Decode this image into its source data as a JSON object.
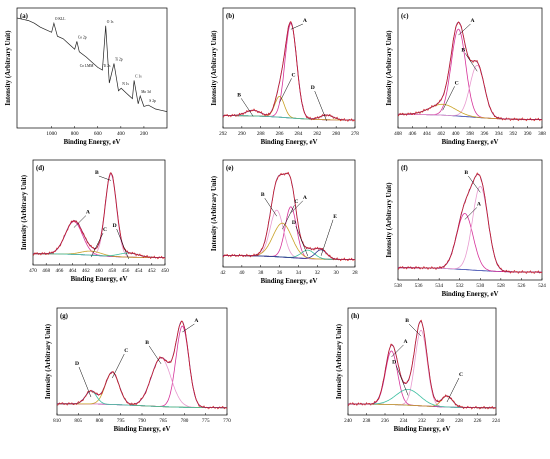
{
  "figure": {
    "xlabel": "Binding Energy, eV",
    "ylabel": "Intensity (Arbitrary Unit)"
  },
  "chart_data": [
    {
      "panel": "(a)",
      "type": "line",
      "xlim": [
        1300,
        0
      ],
      "xticks": [
        1000,
        800,
        600,
        400,
        200
      ],
      "peak_labels": [
        {
          "text": "O KLL",
          "x": 980
        },
        {
          "text": "Co 2p",
          "x": 781
        },
        {
          "text": "Co LMM",
          "x": 765
        },
        {
          "text": "Ti 2p",
          "x": 459
        },
        {
          "text": "O 1s",
          "x": 531
        },
        {
          "text": "Ti 2s",
          "x": 561
        },
        {
          "text": "N 1s",
          "x": 397
        },
        {
          "text": "C 1s",
          "x": 285
        },
        {
          "text": "Mo 3d",
          "x": 232
        },
        {
          "text": "S 2p",
          "x": 162
        }
      ],
      "series": [
        {
          "x": [
            1300,
            1250,
            1200,
            1150,
            1100,
            1050,
            1000,
            980,
            950,
            900,
            850,
            800,
            781,
            760,
            700,
            650,
            600,
            560,
            531,
            500,
            459,
            420,
            397,
            350,
            300,
            285,
            250,
            232,
            200,
            162,
            100,
            50,
            0
          ],
          "y": [
            100,
            99,
            98,
            96,
            93,
            91,
            89,
            96,
            86,
            84,
            80,
            76,
            82,
            74,
            70,
            66,
            62,
            60,
            94,
            50,
            65,
            44,
            46,
            42,
            38,
            52,
            34,
            40,
            32,
            33,
            30,
            29,
            28
          ]
        }
      ]
    },
    {
      "panel": "(b)",
      "type": "line",
      "xlim": [
        292,
        278
      ],
      "xticks": [
        292,
        290,
        288,
        286,
        284,
        282,
        280,
        278
      ],
      "components": [
        {
          "name": "A",
          "center": 284.8,
          "height": 100,
          "sigma": 0.62
        },
        {
          "name": "B",
          "center": 288.8,
          "height": 6,
          "sigma": 0.8
        },
        {
          "name": "C",
          "center": 286.0,
          "height": 22,
          "sigma": 0.5
        },
        {
          "name": "D",
          "center": 281.0,
          "height": 5,
          "sigma": 0.7
        }
      ]
    },
    {
      "panel": "(c)",
      "type": "line",
      "xlim": [
        408,
        388
      ],
      "xticks": [
        408,
        406,
        404,
        402,
        400,
        398,
        396,
        394,
        392,
        390,
        388
      ],
      "components": [
        {
          "name": "A",
          "center": 399.6,
          "height": 80,
          "sigma": 1.0
        },
        {
          "name": "B",
          "center": 397.0,
          "height": 48,
          "sigma": 1.0
        },
        {
          "name": "C",
          "center": 401.8,
          "height": 10,
          "sigma": 1.8
        }
      ]
    },
    {
      "panel": "(d)",
      "type": "line",
      "xlim": [
        470,
        450
      ],
      "xticks": [
        470,
        468,
        466,
        464,
        462,
        460,
        458,
        456,
        454,
        452,
        450
      ],
      "components": [
        {
          "name": "A",
          "center": 463.8,
          "height": 40,
          "sigma": 1.3
        },
        {
          "name": "B",
          "center": 458.2,
          "height": 100,
          "sigma": 0.85
        },
        {
          "name": "C",
          "center": 461.2,
          "height": 5,
          "sigma": 1.5
        },
        {
          "name": "D",
          "center": 455.5,
          "height": 5,
          "sigma": 1.5
        }
      ]
    },
    {
      "panel": "(e)",
      "type": "line",
      "xlim": [
        42,
        28
      ],
      "xticks": [
        42,
        40,
        38,
        36,
        34,
        32,
        30,
        28
      ],
      "components": [
        {
          "name": "A",
          "center": 34.8,
          "height": 60,
          "sigma": 0.6
        },
        {
          "name": "B",
          "center": 36.3,
          "height": 55,
          "sigma": 0.7
        },
        {
          "name": "C",
          "center": 35.7,
          "height": 40,
          "sigma": 1.0
        },
        {
          "name": "D",
          "center": 33.0,
          "height": 10,
          "sigma": 0.7
        },
        {
          "name": "E",
          "center": 31.6,
          "height": 11,
          "sigma": 0.6
        }
      ]
    },
    {
      "panel": "(f)",
      "type": "line",
      "xlim": [
        538,
        524
      ],
      "xticks": [
        538,
        536,
        534,
        532,
        530,
        528,
        526,
        524
      ],
      "components": [
        {
          "name": "A",
          "center": 531.5,
          "height": 60,
          "sigma": 0.8
        },
        {
          "name": "B",
          "center": 530.0,
          "height": 90,
          "sigma": 0.75
        }
      ]
    },
    {
      "panel": "(g)",
      "type": "line",
      "xlim": [
        810,
        770
      ],
      "xticks": [
        810,
        805,
        800,
        795,
        790,
        785,
        780,
        775,
        770
      ],
      "components": [
        {
          "name": "A",
          "center": 780.5,
          "height": 100,
          "sigma": 1.5
        },
        {
          "name": "B",
          "center": 785.5,
          "height": 60,
          "sigma": 2.3
        },
        {
          "name": "C",
          "center": 797.0,
          "height": 40,
          "sigma": 1.6
        },
        {
          "name": "D",
          "center": 802.0,
          "height": 16,
          "sigma": 1.3
        }
      ]
    },
    {
      "panel": "(h)",
      "type": "line",
      "xlim": [
        240,
        224
      ],
      "xticks": [
        240,
        238,
        236,
        234,
        232,
        230,
        228,
        226,
        224
      ],
      "components": [
        {
          "name": "A",
          "center": 235.3,
          "height": 68,
          "sigma": 0.65
        },
        {
          "name": "B",
          "center": 232.1,
          "height": 96,
          "sigma": 0.65
        },
        {
          "name": "C",
          "center": 229.3,
          "height": 14,
          "sigma": 0.6
        },
        {
          "name": "D",
          "center": 233.5,
          "height": 20,
          "sigma": 1.3
        }
      ]
    }
  ]
}
